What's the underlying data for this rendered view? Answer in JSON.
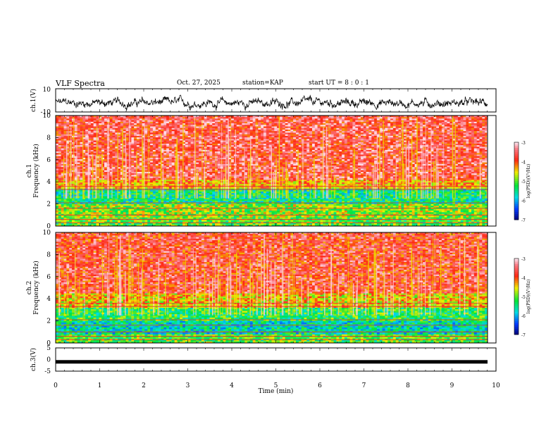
{
  "header": {
    "title": "VLF Spectra",
    "date": "Oct. 27, 2025",
    "station": "station=KAP",
    "start": "start UT = 8 : 0 : 1"
  },
  "chart_data": [
    {
      "type": "line",
      "name": "ch1-waveform",
      "ylabel": "ch.1(V)",
      "ylim": [
        -10,
        10
      ],
      "yticks": [
        "10",
        "-10"
      ],
      "xlim": [
        0,
        10
      ],
      "description_series": "noisy signal mostly between 0 and -5 V"
    },
    {
      "type": "heatmap",
      "name": "ch1-spectrogram",
      "ylabel_channel": "ch.1",
      "ylabel": "Frequency (kHz)",
      "ylim": [
        0,
        10
      ],
      "yticks": [
        "0",
        "2",
        "4",
        "6",
        "8",
        "10"
      ],
      "xlim": [
        0,
        10
      ],
      "bands": [
        {
          "from": 0,
          "to": 0.8,
          "level": -5.0
        },
        {
          "from": 0.8,
          "to": 2.0,
          "level": -4.8
        },
        {
          "from": 2.0,
          "to": 3.4,
          "level": -5.4
        },
        {
          "from": 3.4,
          "to": 4.2,
          "level": -4.2
        },
        {
          "from": 4.2,
          "to": 10,
          "level": -3.6
        }
      ],
      "colorbar": {
        "label": "log(PSD)(V²/Hz)",
        "range": [
          -7,
          -3
        ],
        "ticks": [
          "-3",
          "-4",
          "-5",
          "-6",
          "-7"
        ]
      }
    },
    {
      "type": "heatmap",
      "name": "ch2-spectrogram",
      "ylabel_channel": "ch.2",
      "ylabel": "Frequency (kHz)",
      "ylim": [
        0,
        10
      ],
      "yticks": [
        "0",
        "2",
        "4",
        "6",
        "8",
        "10"
      ],
      "xlim": [
        0,
        10
      ],
      "bands": [
        {
          "from": 0,
          "to": 0.8,
          "level": -5.0
        },
        {
          "from": 0.8,
          "to": 2.0,
          "level": -5.6
        },
        {
          "from": 2.0,
          "to": 3.2,
          "level": -5.2
        },
        {
          "from": 3.2,
          "to": 4.5,
          "level": -4.4
        },
        {
          "from": 4.5,
          "to": 10,
          "level": -3.7
        }
      ],
      "colorbar": {
        "label": "log(PSD)(V²/Hz)",
        "range": [
          -7,
          -3
        ],
        "ticks": [
          "-3",
          "-4",
          "-5",
          "-6",
          "-7"
        ]
      }
    },
    {
      "type": "line",
      "name": "ch3-waveform",
      "ylabel": "ch.3(V)",
      "ylim": [
        -5,
        5
      ],
      "yticks": [
        "5",
        "0",
        "-5"
      ],
      "value": -1,
      "xlim": [
        0,
        10
      ],
      "xlabel": "Time (min)",
      "xticks": [
        "0",
        "1",
        "2",
        "3",
        "4",
        "5",
        "6",
        "7",
        "8",
        "9",
        "10"
      ]
    }
  ]
}
